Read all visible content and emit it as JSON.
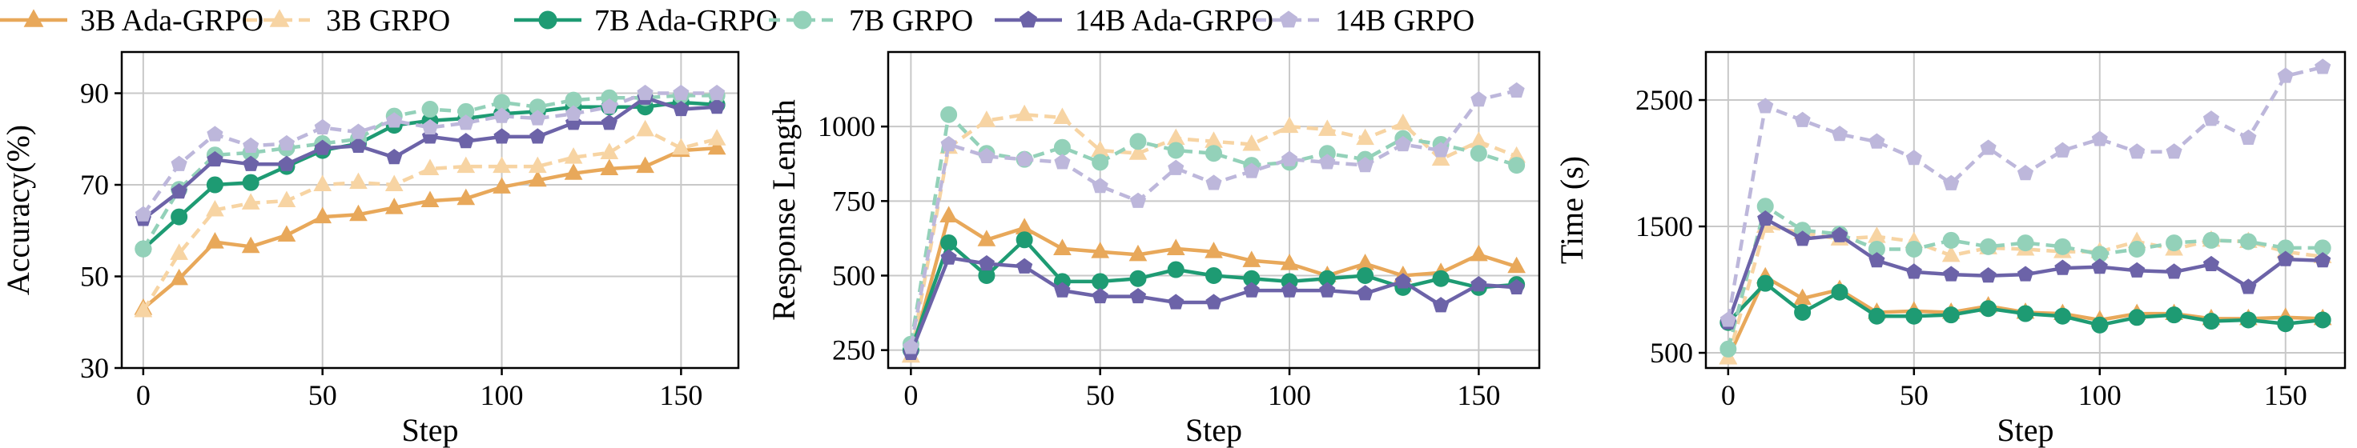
{
  "legend": [
    {
      "name": "3B Ada-GRPO",
      "color": "#E8A85A",
      "dash": false,
      "marker": "triangle"
    },
    {
      "name": "3B GRPO",
      "color": "#F7D4A3",
      "dash": true,
      "marker": "triangle"
    },
    {
      "name": "7B Ada-GRPO",
      "color": "#1E9B73",
      "dash": false,
      "marker": "circle"
    },
    {
      "name": "7B GRPO",
      "color": "#93D1B9",
      "dash": true,
      "marker": "circle"
    },
    {
      "name": "14B Ada-GRPO",
      "color": "#6C63A8",
      "dash": false,
      "marker": "pentagon"
    },
    {
      "name": "14B GRPO",
      "color": "#BDB7DB",
      "dash": true,
      "marker": "pentagon"
    }
  ],
  "chart_data": [
    {
      "type": "line",
      "xlabel": "Step",
      "ylabel": "Accuracy(%)",
      "xlim": [
        -6,
        166
      ],
      "ylim": [
        30,
        99
      ],
      "xticks": [
        0,
        50,
        100,
        150
      ],
      "yticks": [
        30,
        50,
        70,
        90
      ],
      "grid": true,
      "x": [
        0,
        10,
        20,
        30,
        40,
        50,
        60,
        70,
        80,
        90,
        100,
        110,
        120,
        130,
        140,
        150,
        160
      ],
      "series": [
        {
          "name": "3B Ada-GRPO",
          "values": [
            43,
            49.5,
            57.5,
            56.5,
            59,
            63,
            63.5,
            65,
            66.5,
            67,
            69.5,
            71,
            72.5,
            73.5,
            74,
            77.5,
            78
          ]
        },
        {
          "name": "3B GRPO",
          "values": [
            42.5,
            55,
            64.5,
            66,
            66.5,
            70,
            70.5,
            70,
            73.5,
            74,
            74,
            74,
            76,
            77,
            82,
            78,
            80
          ]
        },
        {
          "name": "7B Ada-GRPO",
          "values": [
            56,
            63,
            70,
            70.5,
            74,
            77.5,
            79,
            83,
            84,
            84.5,
            85.5,
            86,
            87,
            87,
            87,
            88,
            87.5
          ]
        },
        {
          "name": "7B GRPO",
          "values": [
            56,
            69,
            76.5,
            77,
            78,
            79,
            80,
            85,
            86.5,
            86,
            88,
            87,
            88.5,
            89,
            89,
            89.5,
            89.5
          ]
        },
        {
          "name": "14B Ada-GRPO",
          "values": [
            62.5,
            68.5,
            75.5,
            74.5,
            74.5,
            78,
            78.5,
            76,
            80.5,
            79.5,
            80.5,
            80.5,
            83.5,
            83.5,
            89,
            86.5,
            87
          ]
        },
        {
          "name": "14B GRPO",
          "values": [
            63.5,
            74.5,
            81,
            78.5,
            79,
            82.5,
            81.5,
            84,
            82.5,
            83.5,
            85,
            84.5,
            85.5,
            87,
            90,
            90,
            90
          ]
        }
      ]
    },
    {
      "type": "line",
      "xlabel": "Step",
      "ylabel": "Response Length",
      "xlim": [
        -6,
        166
      ],
      "ylim": [
        190,
        1250
      ],
      "xticks": [
        0,
        50,
        100,
        150
      ],
      "yticks": [
        250,
        500,
        750,
        1000
      ],
      "grid": true,
      "x": [
        0,
        10,
        20,
        30,
        40,
        50,
        60,
        70,
        80,
        90,
        100,
        110,
        120,
        130,
        140,
        150,
        160
      ],
      "series": [
        {
          "name": "3B Ada-GRPO",
          "values": [
            230,
            700,
            620,
            660,
            590,
            580,
            570,
            590,
            580,
            550,
            540,
            500,
            540,
            500,
            510,
            570,
            530
          ]
        },
        {
          "name": "3B GRPO",
          "values": [
            230,
            930,
            1020,
            1040,
            1030,
            920,
            910,
            960,
            950,
            940,
            1000,
            990,
            960,
            1010,
            890,
            950,
            900
          ]
        },
        {
          "name": "7B Ada-GRPO",
          "values": [
            250,
            610,
            500,
            620,
            480,
            480,
            490,
            520,
            500,
            490,
            480,
            490,
            500,
            460,
            490,
            460,
            470
          ]
        },
        {
          "name": "7B GRPO",
          "values": [
            270,
            1040,
            910,
            890,
            930,
            880,
            950,
            920,
            910,
            870,
            880,
            910,
            890,
            960,
            940,
            910,
            870
          ]
        },
        {
          "name": "14B Ada-GRPO",
          "values": [
            240,
            560,
            540,
            530,
            450,
            430,
            430,
            410,
            410,
            450,
            450,
            450,
            440,
            480,
            400,
            470,
            460
          ]
        },
        {
          "name": "14B GRPO",
          "values": [
            260,
            940,
            900,
            890,
            880,
            800,
            750,
            860,
            810,
            850,
            890,
            880,
            870,
            940,
            920,
            1090,
            1120
          ]
        }
      ]
    },
    {
      "type": "line",
      "xlabel": "Step",
      "ylabel": "Time (s)",
      "xlim": [
        -6,
        166
      ],
      "ylim": [
        380,
        2880
      ],
      "xticks": [
        0,
        50,
        100,
        150
      ],
      "yticks": [
        500,
        1500,
        2500
      ],
      "grid": true,
      "x": [
        0,
        10,
        20,
        30,
        40,
        50,
        60,
        70,
        80,
        90,
        100,
        110,
        120,
        130,
        140,
        150,
        160
      ],
      "series": [
        {
          "name": "3B Ada-GRPO",
          "values": [
            460,
            1100,
            930,
            1000,
            820,
            830,
            820,
            870,
            820,
            810,
            760,
            810,
            810,
            770,
            770,
            780,
            770
          ]
        },
        {
          "name": "3B GRPO",
          "values": [
            460,
            1500,
            1450,
            1400,
            1420,
            1380,
            1270,
            1330,
            1320,
            1300,
            1300,
            1380,
            1320,
            1390,
            1380,
            1300,
            1260
          ]
        },
        {
          "name": "7B Ada-GRPO",
          "values": [
            740,
            1050,
            820,
            980,
            790,
            790,
            800,
            850,
            810,
            790,
            720,
            780,
            800,
            750,
            760,
            730,
            760
          ]
        },
        {
          "name": "7B GRPO",
          "values": [
            530,
            1660,
            1470,
            1440,
            1320,
            1320,
            1390,
            1340,
            1370,
            1340,
            1280,
            1320,
            1370,
            1390,
            1380,
            1330,
            1330
          ]
        },
        {
          "name": "14B Ada-GRPO",
          "values": [
            740,
            1560,
            1400,
            1430,
            1230,
            1140,
            1120,
            1110,
            1120,
            1170,
            1180,
            1150,
            1140,
            1200,
            1020,
            1240,
            1230
          ]
        },
        {
          "name": "14B GRPO",
          "values": [
            760,
            2450,
            2340,
            2230,
            2170,
            2040,
            1840,
            2120,
            1920,
            2100,
            2190,
            2090,
            2090,
            2350,
            2200,
            2690,
            2760
          ]
        }
      ]
    }
  ]
}
